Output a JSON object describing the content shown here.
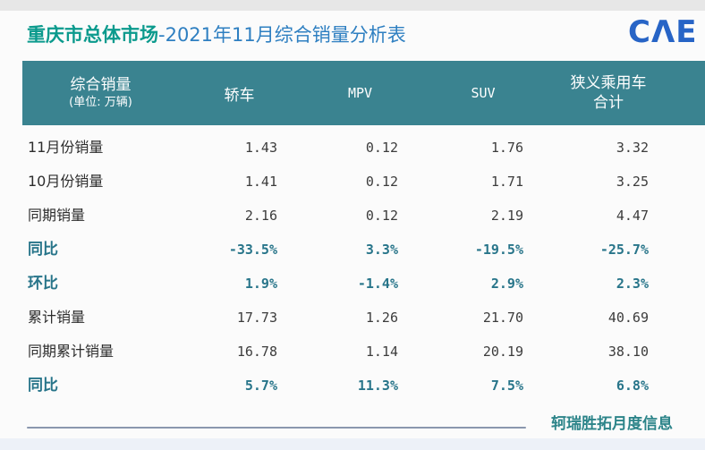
{
  "page": {
    "title_primary": "重庆市总体市场",
    "title_secondary": "-2021年11月综合销量分析表",
    "logo_text": "CΛE",
    "footer_note": "轲瑞胜拓月度信息"
  },
  "table": {
    "header": {
      "label_line1": "综合销量",
      "label_line2": "(单位: 万辆)",
      "col_sedan": "轿车",
      "col_mpv": "MPV",
      "col_suv": "SUV",
      "col_total_line1": "狭义乘用车",
      "col_total_line2": "合计"
    },
    "rows": [
      {
        "label": "11月份销量",
        "emphasis": false,
        "values": [
          "1.43",
          "0.12",
          "1.76",
          "3.32"
        ]
      },
      {
        "label": "10月份销量",
        "emphasis": false,
        "values": [
          "1.41",
          "0.12",
          "1.71",
          "3.25"
        ]
      },
      {
        "label": "同期销量",
        "emphasis": false,
        "values": [
          "2.16",
          "0.12",
          "2.19",
          "4.47"
        ]
      },
      {
        "label": "同比",
        "emphasis": true,
        "values": [
          "-33.5%",
          "3.3%",
          "-19.5%",
          "-25.7%"
        ]
      },
      {
        "label": "环比",
        "emphasis": true,
        "values": [
          "1.9%",
          "-1.4%",
          "2.9%",
          "2.3%"
        ]
      },
      {
        "label": "累计销量",
        "emphasis": false,
        "values": [
          "17.73",
          "1.26",
          "21.70",
          "40.69"
        ]
      },
      {
        "label": "同期累计销量",
        "emphasis": false,
        "values": [
          "16.78",
          "1.14",
          "20.19",
          "38.10"
        ]
      },
      {
        "label": "同比",
        "emphasis": true,
        "values": [
          "5.7%",
          "11.3%",
          "7.5%",
          "6.8%"
        ]
      }
    ]
  },
  "chart_data": {
    "type": "table",
    "title": "重庆市总体市场-2021年11月综合销量分析表",
    "unit": "万辆",
    "columns": [
      "综合销量 (单位: 万辆)",
      "轿车",
      "MPV",
      "SUV",
      "狭义乘用车合计"
    ],
    "rows": [
      [
        "11月份销量",
        1.43,
        0.12,
        1.76,
        3.32
      ],
      [
        "10月份销量",
        1.41,
        0.12,
        1.71,
        3.25
      ],
      [
        "同期销量",
        2.16,
        0.12,
        2.19,
        4.47
      ],
      [
        "同比",
        "-33.5%",
        "3.3%",
        "-19.5%",
        "-25.7%"
      ],
      [
        "环比",
        "1.9%",
        "-1.4%",
        "2.9%",
        "2.3%"
      ],
      [
        "累计销量",
        17.73,
        1.26,
        21.7,
        40.69
      ],
      [
        "同期累计销量",
        16.78,
        1.14,
        20.19,
        38.1
      ],
      [
        "同比",
        "5.7%",
        "11.3%",
        "7.5%",
        "6.8%"
      ]
    ]
  },
  "colors": {
    "header_bg": "#3a8390",
    "title_teal": "#0b9a8d",
    "title_blue": "#2e7fc1",
    "emphasis_teal": "#28758a",
    "logo_blue": "#2764c6",
    "footer_teal": "#2c8489",
    "divider": "#8a97ae"
  }
}
